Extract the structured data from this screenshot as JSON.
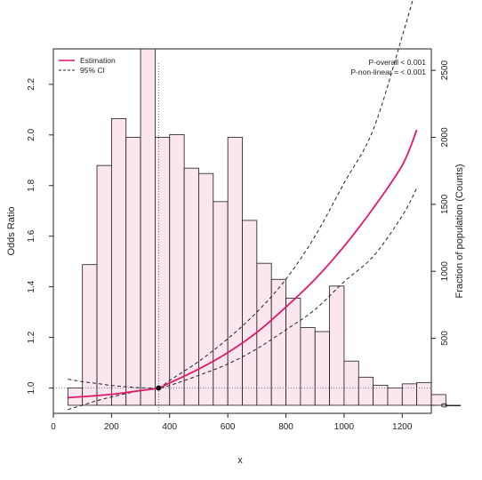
{
  "chart_data": {
    "type": "bar",
    "title": "",
    "xlabel": "x",
    "ylabel": "Odds Ratio",
    "y2label": "Fraction of population (Counts)",
    "xlim": [
      0,
      1300
    ],
    "ylim": [
      0.9,
      2.34
    ],
    "y2lim": [
      -60,
      2660
    ],
    "xticks": [
      0,
      200,
      400,
      600,
      800,
      1000,
      1200
    ],
    "yticks": [
      1.0,
      1.2,
      1.4,
      1.6,
      1.8,
      2.0,
      2.2
    ],
    "y2ticks": [
      0,
      500,
      1000,
      1500,
      2000,
      2500
    ],
    "grid": false,
    "annotations": [
      "P-overall < 0.001",
      "P-non-linear = < 0.001"
    ],
    "legend": {
      "position": "top-left",
      "entries": [
        {
          "label": "Estimation",
          "color": "#e0196e",
          "style": "solid"
        },
        {
          "label": "95% CI",
          "color": "#222222",
          "style": "dashed"
        }
      ]
    },
    "reference": {
      "x": 362,
      "y": 1.0
    },
    "histogram": {
      "bin_start": 50,
      "bin_width": 50,
      "fill": "#fbe6ef",
      "counts": [
        130,
        1050,
        1790,
        2140,
        2000,
        2660,
        2000,
        2020,
        1770,
        1730,
        1520,
        2000,
        1380,
        1060,
        940,
        800,
        580,
        550,
        890,
        330,
        210,
        150,
        130,
        160,
        170,
        80,
        0
      ]
    },
    "series": [
      {
        "name": "Estimation",
        "color": "#e0196e",
        "x": [
          50,
          100,
          150,
          200,
          250,
          300,
          362,
          400,
          500,
          600,
          700,
          800,
          900,
          1000,
          1100,
          1200,
          1250
        ],
        "y": [
          0.962,
          0.966,
          0.97,
          0.975,
          0.982,
          0.99,
          1.0,
          1.02,
          1.075,
          1.14,
          1.22,
          1.32,
          1.43,
          1.56,
          1.71,
          1.88,
          2.02
        ]
      },
      {
        "name": "95% CI",
        "color": "#222222",
        "x": [
          50,
          100,
          150,
          200,
          250,
          300,
          362,
          400,
          500,
          600,
          700,
          800,
          900,
          1000,
          1100,
          1200,
          1250
        ],
        "y": [
          0.915,
          0.932,
          0.95,
          0.965,
          0.978,
          0.99,
          1.0,
          1.03,
          1.105,
          1.195,
          1.3,
          1.43,
          1.6,
          1.81,
          2.02,
          2.39,
          2.59
        ]
      },
      {
        "name": "95% CI",
        "color": "#222222",
        "x": [
          50,
          100,
          150,
          200,
          250,
          300,
          362,
          400,
          500,
          600,
          700,
          800,
          900,
          1000,
          1100,
          1200,
          1250
        ],
        "y": [
          1.035,
          1.025,
          1.018,
          1.01,
          1.005,
          1.001,
          1.0,
          1.01,
          1.05,
          1.095,
          1.155,
          1.23,
          1.31,
          1.42,
          1.52,
          1.68,
          1.79
        ]
      }
    ]
  }
}
